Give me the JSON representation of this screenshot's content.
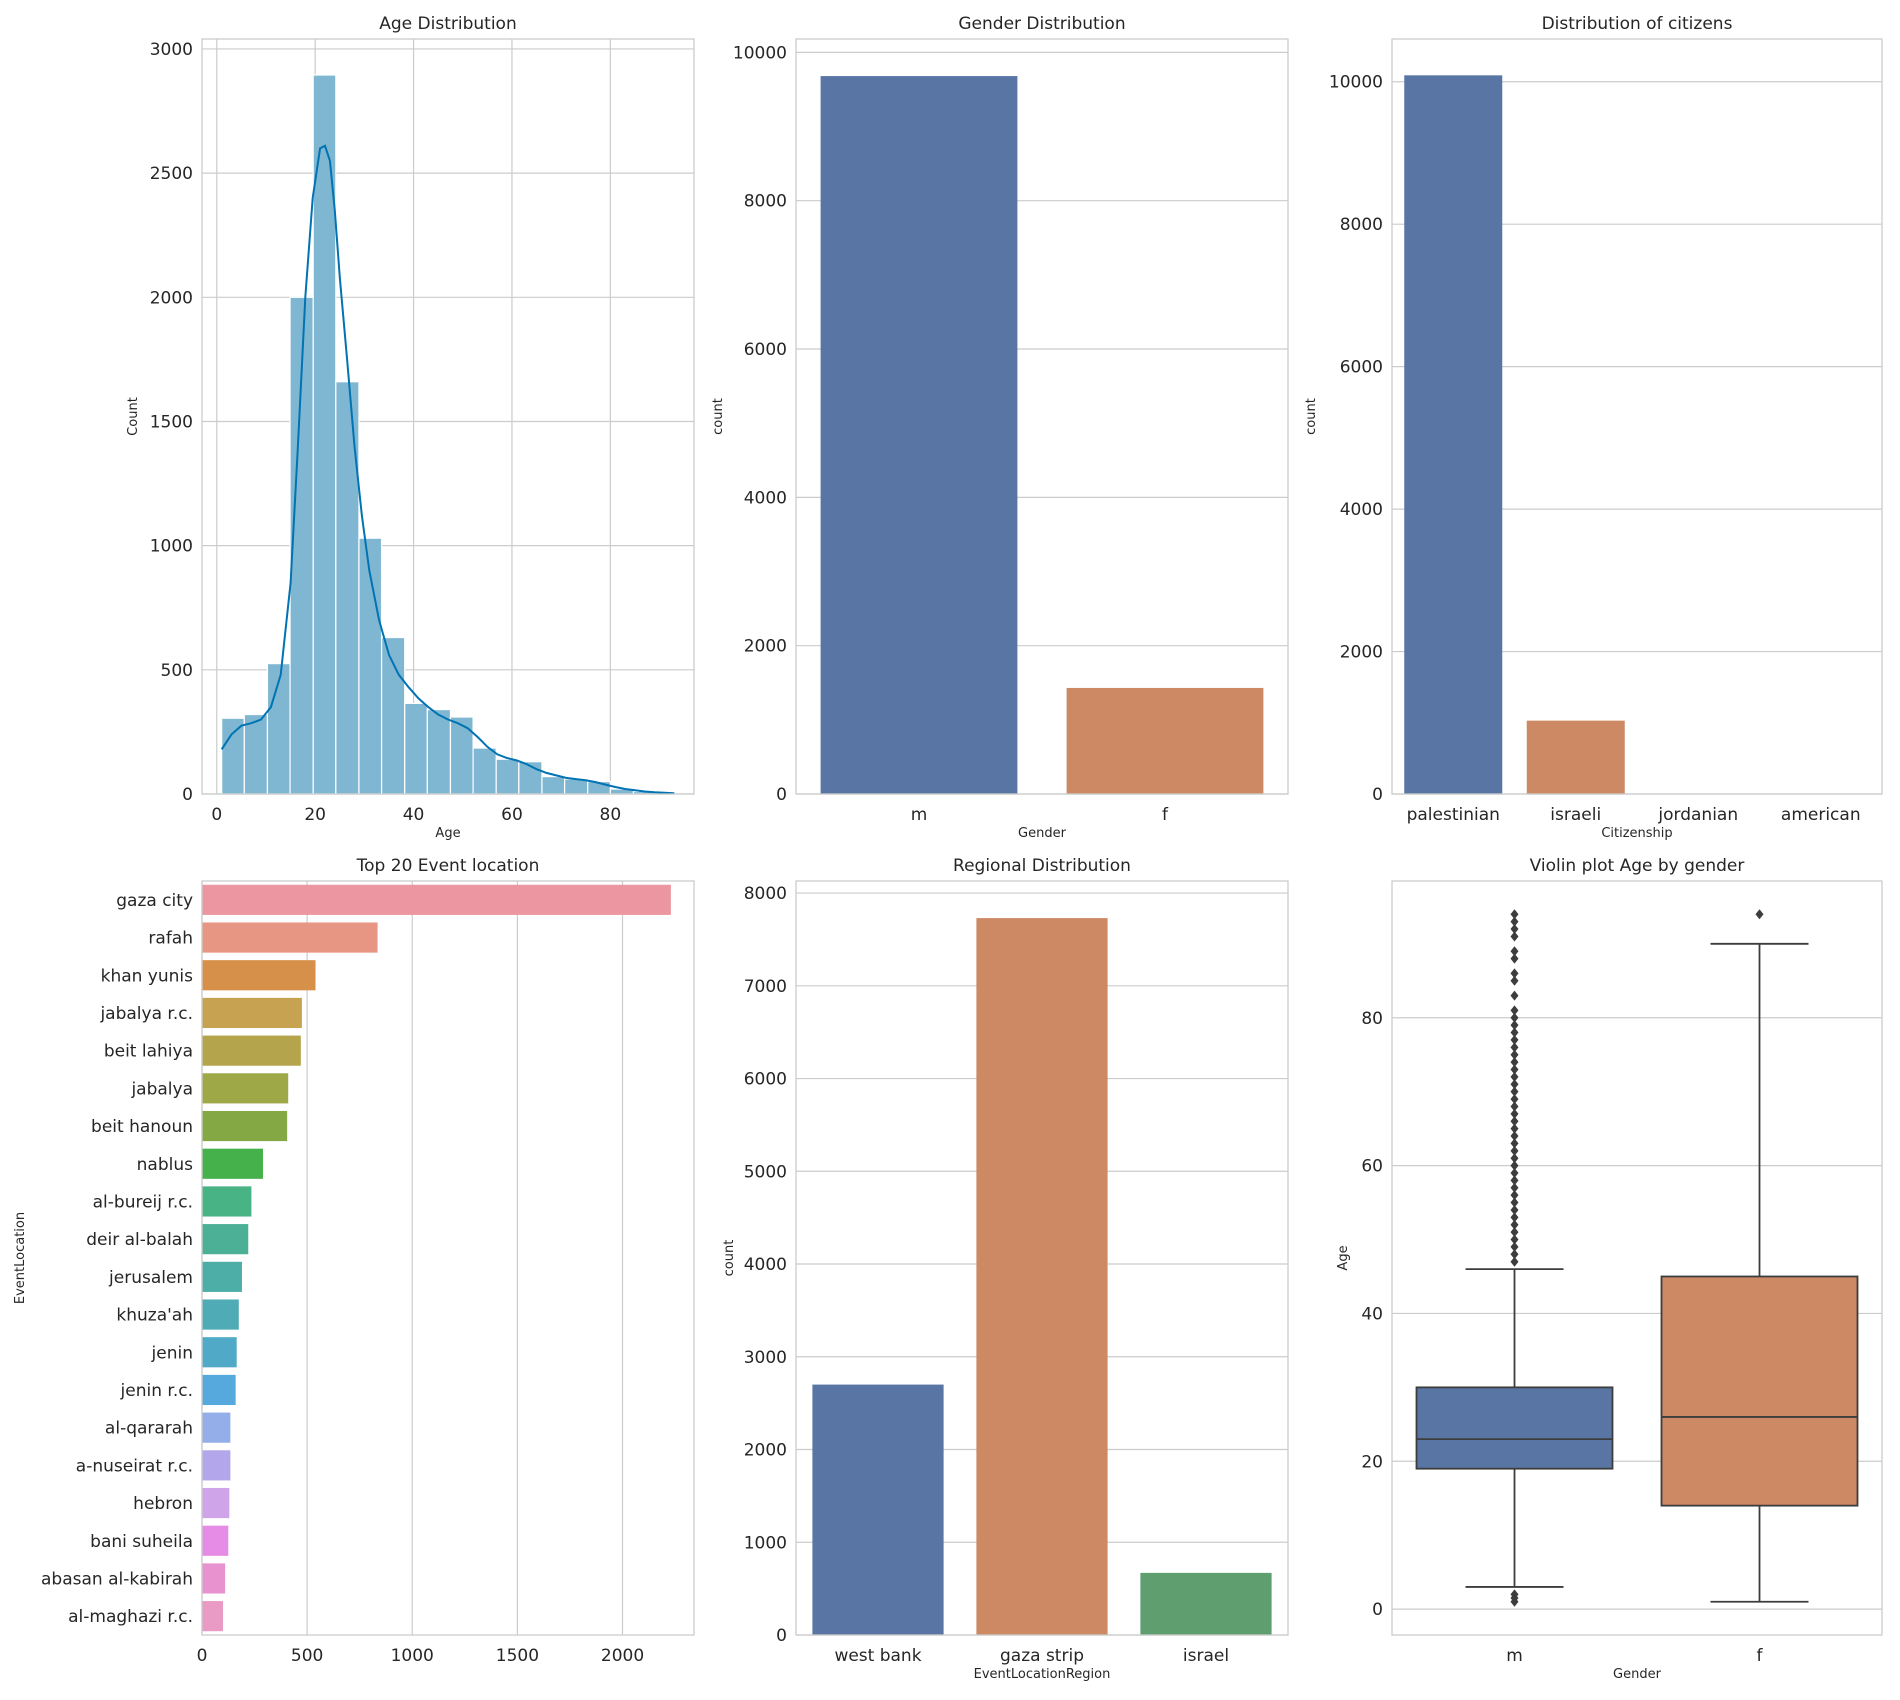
{
  "chart_data": [
    {
      "id": "age",
      "type": "bar",
      "title": "Age Distribution",
      "xlabel": "Age",
      "ylabel": "Count",
      "xlim": [
        -3,
        97
      ],
      "ylim": [
        0,
        3040
      ],
      "xticks": [
        0,
        20,
        40,
        60,
        80
      ],
      "yticks": [
        0,
        500,
        1000,
        1500,
        2000,
        2500,
        3000
      ],
      "bins": [
        {
          "x0": 1.0,
          "x1": 5.6,
          "count": 305
        },
        {
          "x0": 5.6,
          "x1": 10.3,
          "count": 320
        },
        {
          "x0": 10.3,
          "x1": 14.9,
          "count": 525
        },
        {
          "x0": 14.9,
          "x1": 19.6,
          "count": 2000
        },
        {
          "x0": 19.6,
          "x1": 24.2,
          "count": 2895
        },
        {
          "x0": 24.2,
          "x1": 28.9,
          "count": 1660
        },
        {
          "x0": 28.9,
          "x1": 33.5,
          "count": 1030
        },
        {
          "x0": 33.5,
          "x1": 38.2,
          "count": 630
        },
        {
          "x0": 38.2,
          "x1": 42.8,
          "count": 365
        },
        {
          "x0": 42.8,
          "x1": 47.5,
          "count": 340
        },
        {
          "x0": 47.5,
          "x1": 52.1,
          "count": 310
        },
        {
          "x0": 52.1,
          "x1": 56.8,
          "count": 185
        },
        {
          "x0": 56.8,
          "x1": 61.4,
          "count": 140
        },
        {
          "x0": 61.4,
          "x1": 66.1,
          "count": 130
        },
        {
          "x0": 66.1,
          "x1": 70.7,
          "count": 70
        },
        {
          "x0": 70.7,
          "x1": 75.4,
          "count": 60
        },
        {
          "x0": 75.4,
          "x1": 80.0,
          "count": 50
        },
        {
          "x0": 80.0,
          "x1": 84.7,
          "count": 20
        },
        {
          "x0": 84.7,
          "x1": 89.3,
          "count": 10
        },
        {
          "x0": 89.3,
          "x1": 94.0,
          "count": 5
        }
      ],
      "kde": [
        [
          1,
          180
        ],
        [
          3,
          240
        ],
        [
          5,
          275
        ],
        [
          7,
          285
        ],
        [
          9,
          300
        ],
        [
          11,
          350
        ],
        [
          13,
          480
        ],
        [
          15,
          850
        ],
        [
          16.5,
          1400
        ],
        [
          18,
          2000
        ],
        [
          19.5,
          2400
        ],
        [
          21,
          2600
        ],
        [
          22,
          2610
        ],
        [
          23,
          2550
        ],
        [
          24,
          2350
        ],
        [
          25,
          2080
        ],
        [
          26.5,
          1750
        ],
        [
          28,
          1400
        ],
        [
          29.5,
          1120
        ],
        [
          31,
          900
        ],
        [
          33,
          700
        ],
        [
          35,
          560
        ],
        [
          37,
          480
        ],
        [
          39,
          430
        ],
        [
          41,
          385
        ],
        [
          43,
          350
        ],
        [
          45,
          320
        ],
        [
          47,
          300
        ],
        [
          49,
          285
        ],
        [
          51,
          265
        ],
        [
          53,
          230
        ],
        [
          55,
          190
        ],
        [
          57,
          160
        ],
        [
          59,
          145
        ],
        [
          61,
          135
        ],
        [
          63,
          120
        ],
        [
          65,
          100
        ],
        [
          67,
          85
        ],
        [
          69,
          75
        ],
        [
          71,
          65
        ],
        [
          73,
          60
        ],
        [
          75,
          55
        ],
        [
          77,
          48
        ],
        [
          79,
          38
        ],
        [
          81,
          28
        ],
        [
          83,
          20
        ],
        [
          85,
          15
        ],
        [
          87,
          10
        ],
        [
          89,
          7
        ],
        [
          91,
          5
        ],
        [
          93,
          3
        ]
      ],
      "color": "#0173b2"
    },
    {
      "id": "gender",
      "type": "bar",
      "title": "Gender Distribution",
      "xlabel": "Gender",
      "ylabel": "count",
      "categories": [
        "m",
        "f"
      ],
      "values": [
        9680,
        1430
      ],
      "ylim": [
        0,
        10180
      ],
      "yticks": [
        0,
        2000,
        4000,
        6000,
        8000,
        10000
      ],
      "colors": [
        "#5875a4",
        "#cc8963"
      ]
    },
    {
      "id": "citizens",
      "type": "bar",
      "title": "Distribution of citizens",
      "xlabel": "Citizenship",
      "ylabel": "count",
      "categories": [
        "palestinian",
        "israeli",
        "jordanian",
        "american"
      ],
      "values": [
        10090,
        1030,
        1,
        1
      ],
      "ylim": [
        0,
        10600
      ],
      "yticks": [
        0,
        2000,
        4000,
        6000,
        8000,
        10000
      ],
      "colors": [
        "#5875a4",
        "#cc8963",
        "#5f9e6e",
        "#b55d60"
      ]
    },
    {
      "id": "locations",
      "type": "bar",
      "orientation": "horizontal",
      "title": "Top 20 Event location",
      "xlabel": "",
      "ylabel": "EventLocation",
      "categories": [
        "gaza city",
        "rafah",
        "khan yunis",
        "jabalya r.c.",
        "beit lahiya",
        "jabalya",
        "beit hanoun",
        "nablus",
        "al-bureij r.c.",
        "deir al-balah",
        "jerusalem",
        "khuza'ah",
        "jenin",
        "jenin r.c.",
        "al-qararah",
        "a-nuseirat r.c.",
        "hebron",
        "bani suheila",
        "abasan al-kabirah",
        "al-maghazi r.c."
      ],
      "values": [
        2230,
        835,
        540,
        475,
        470,
        410,
        405,
        290,
        235,
        220,
        190,
        175,
        165,
        160,
        135,
        135,
        130,
        125,
        110,
        100
      ],
      "xlim": [
        0,
        2340
      ],
      "xticks": [
        0,
        500,
        1000,
        1500,
        2000
      ],
      "colors": [
        "#ec96a1",
        "#e69682",
        "#d69049",
        "#c6a251",
        "#b4a54d",
        "#9ea846",
        "#83a844",
        "#45b14b",
        "#48b384",
        "#4bb096",
        "#4dada7",
        "#4fabb6",
        "#50aac7",
        "#56a9dc",
        "#94aeea",
        "#b4a6ea",
        "#d0a4e9",
        "#e68be6",
        "#e992d0",
        "#e99ac5"
      ]
    },
    {
      "id": "region",
      "type": "bar",
      "title": "Regional Distribution",
      "xlabel": "EventLocationRegion",
      "ylabel": "count",
      "categories": [
        "west bank",
        "gaza strip",
        "israel"
      ],
      "values": [
        2700,
        7730,
        670
      ],
      "ylim": [
        0,
        8130
      ],
      "yticks": [
        0,
        1000,
        2000,
        3000,
        4000,
        5000,
        6000,
        7000,
        8000
      ],
      "colors": [
        "#5875a4",
        "#cc8963",
        "#5f9e6e"
      ]
    },
    {
      "id": "violin",
      "type": "box",
      "title": "Violin plot Age by gender",
      "xlabel": "Gender",
      "ylabel": "Age",
      "ylim": [
        -3.5,
        98.5
      ],
      "yticks": [
        0,
        20,
        40,
        60,
        80
      ],
      "groups": [
        {
          "name": "m",
          "q1": 19,
          "median": 23,
          "q3": 30,
          "whisker_low": 3,
          "whisker_high": 46,
          "outliers": [
            1,
            1.5,
            2,
            47,
            48,
            49,
            50,
            51,
            52,
            53,
            54,
            55,
            56,
            57,
            58,
            59,
            60,
            61,
            62,
            63,
            64,
            65,
            66,
            67,
            68,
            69,
            70,
            71,
            72,
            73,
            74,
            75,
            76,
            77,
            78,
            79,
            80,
            81,
            83,
            85,
            86,
            88,
            89,
            91,
            92,
            93,
            94
          ]
        },
        {
          "name": "f",
          "q1": 14,
          "median": 26,
          "q3": 45,
          "whisker_low": 1,
          "whisker_high": 90,
          "outliers": [
            94
          ]
        }
      ],
      "colors": [
        "#5875a4",
        "#cc8963"
      ]
    }
  ]
}
